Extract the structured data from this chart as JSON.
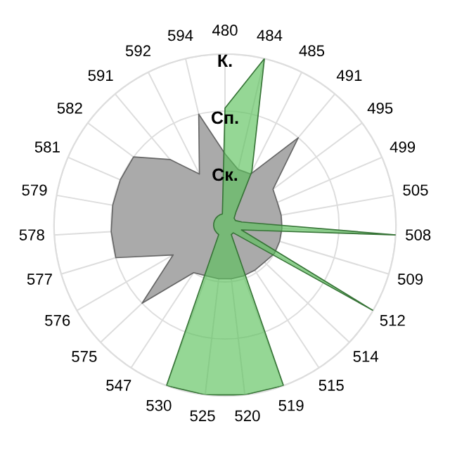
{
  "chart_data": {
    "type": "radar",
    "categories": [
      "480",
      "484",
      "485",
      "491",
      "495",
      "499",
      "505",
      "508",
      "509",
      "512",
      "514",
      "515",
      "519",
      "520",
      "525",
      "530",
      "547",
      "575",
      "576",
      "577",
      "578",
      "579",
      "581",
      "582",
      "591",
      "592",
      "594"
    ],
    "series": [
      {
        "color": "#aaaaaa",
        "values": [
          1.25,
          1.0,
          1.0,
          2.0,
          1.05,
          1.0,
          1.0,
          1.0,
          1.0,
          1.0,
          0.95,
          0.95,
          0.95,
          0.95,
          0.95,
          0.95,
          1.0,
          2.0,
          1.05,
          2.0,
          2.0,
          2.0,
          2.0,
          2.0,
          1.5,
          1.0,
          2.0
        ]
      },
      {
        "color": "#5cc25c",
        "values": [
          2.05,
          3.0,
          1.05,
          0.3,
          0.2,
          0.2,
          0.3,
          3.0,
          0.3,
          3.0,
          0.2,
          0.2,
          3.0,
          3.0,
          3.0,
          3.0,
          0.2,
          0.2,
          0.2,
          0.2,
          0.2,
          0.2,
          0.2,
          0.2,
          0.2,
          0.2,
          0.2
        ]
      }
    ],
    "ylim": [
      0,
      3
    ],
    "yticks": [
      {
        "value": 1,
        "label": "Ск."
      },
      {
        "value": 2,
        "label": "Сп."
      },
      {
        "value": 3,
        "label": "К."
      }
    ],
    "grid": true
  }
}
